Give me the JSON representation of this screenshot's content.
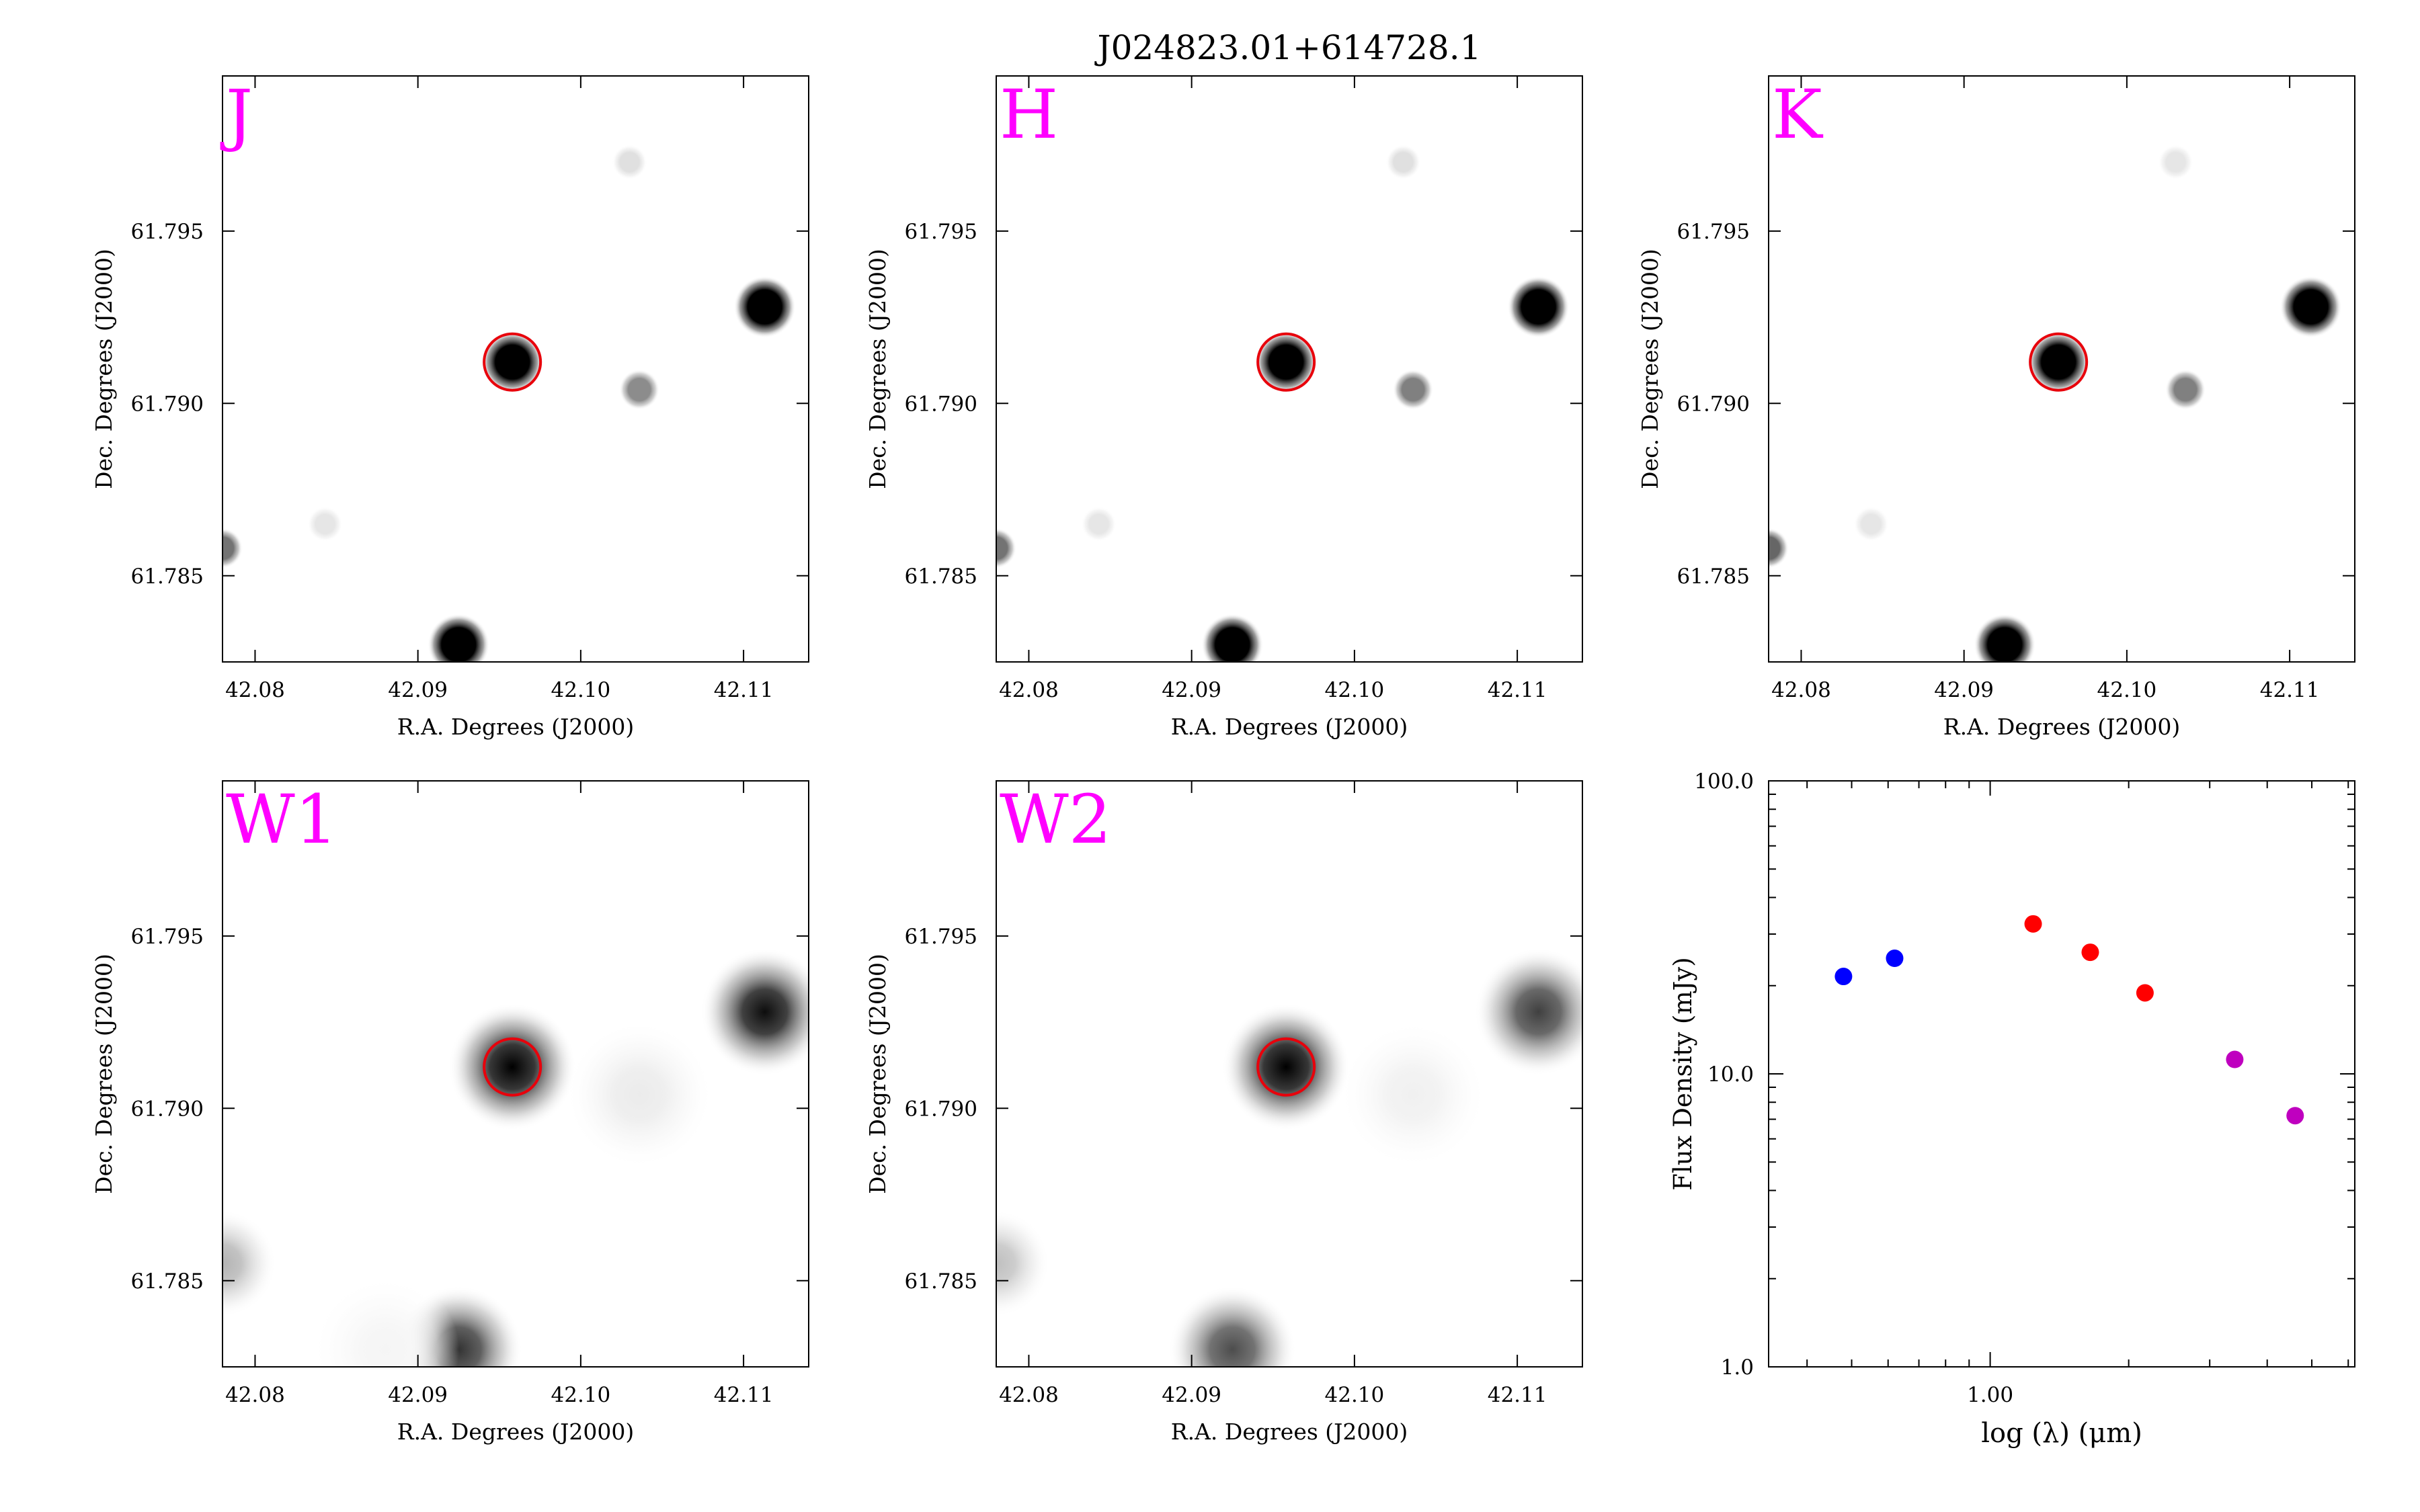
{
  "figure_title": "J024823.01+614728.1",
  "colors": {
    "band_label": "#ff00ff",
    "aperture": "#e8000b",
    "sed_blue": "#0000ff",
    "sed_red": "#ff0000",
    "sed_magenta": "#bf00bf"
  },
  "cutout_axes": {
    "xlabel": "R.A. Degrees (J2000)",
    "ylabel": "Dec. Degrees (J2000)",
    "xtick_labels": [
      "42.08",
      "42.09",
      "42.10",
      "42.11"
    ],
    "ytick_labels": [
      "61.795",
      "61.790",
      "61.785"
    ]
  },
  "chart_data": [
    {
      "type": "heatmap",
      "band": "J",
      "x_range": [
        42.078,
        42.114
      ],
      "y_range": [
        61.7825,
        61.7995
      ],
      "sources": [
        {
          "ra": 42.0958,
          "dec": 61.7912,
          "level": 1.0
        },
        {
          "ra": 42.1113,
          "dec": 61.7928,
          "level": 1.0
        },
        {
          "ra": 42.1036,
          "dec": 61.7904,
          "level": 0.45
        },
        {
          "ra": 42.0925,
          "dec": 61.783,
          "level": 1.0
        },
        {
          "ra": 42.078,
          "dec": 61.7858,
          "level": 0.55
        },
        {
          "ra": 42.103,
          "dec": 61.797,
          "level": 0.12
        },
        {
          "ra": 42.0843,
          "dec": 61.7865,
          "level": 0.1
        }
      ],
      "aperture": {
        "ra": 42.0958,
        "dec": 61.7912
      }
    },
    {
      "type": "heatmap",
      "band": "H",
      "x_range": [
        42.078,
        42.114
      ],
      "y_range": [
        61.7825,
        61.7995
      ],
      "sources": [
        {
          "ra": 42.0958,
          "dec": 61.7912,
          "level": 1.0
        },
        {
          "ra": 42.1113,
          "dec": 61.7928,
          "level": 1.0
        },
        {
          "ra": 42.1036,
          "dec": 61.7904,
          "level": 0.5
        },
        {
          "ra": 42.0925,
          "dec": 61.783,
          "level": 1.0
        },
        {
          "ra": 42.078,
          "dec": 61.7858,
          "level": 0.55
        },
        {
          "ra": 42.103,
          "dec": 61.797,
          "level": 0.12
        },
        {
          "ra": 42.0843,
          "dec": 61.7865,
          "level": 0.1
        }
      ],
      "aperture": {
        "ra": 42.0958,
        "dec": 61.7912
      }
    },
    {
      "type": "heatmap",
      "band": "K",
      "x_range": [
        42.078,
        42.114
      ],
      "y_range": [
        61.7825,
        61.7995
      ],
      "sources": [
        {
          "ra": 42.0958,
          "dec": 61.7912,
          "level": 1.0
        },
        {
          "ra": 42.1113,
          "dec": 61.7928,
          "level": 1.0
        },
        {
          "ra": 42.1036,
          "dec": 61.7904,
          "level": 0.5
        },
        {
          "ra": 42.0925,
          "dec": 61.783,
          "level": 1.0
        },
        {
          "ra": 42.078,
          "dec": 61.7858,
          "level": 0.6
        },
        {
          "ra": 42.103,
          "dec": 61.797,
          "level": 0.1
        },
        {
          "ra": 42.0843,
          "dec": 61.7865,
          "level": 0.1
        }
      ],
      "aperture": {
        "ra": 42.0958,
        "dec": 61.7912
      }
    },
    {
      "type": "heatmap",
      "band": "W1",
      "x_range": [
        42.078,
        42.114
      ],
      "y_range": [
        61.7825,
        61.7995
      ],
      "sources": [
        {
          "ra": 42.0958,
          "dec": 61.7912,
          "level": 1.0
        },
        {
          "ra": 42.1113,
          "dec": 61.7928,
          "level": 0.95
        },
        {
          "ra": 42.0925,
          "dec": 61.783,
          "level": 0.8
        },
        {
          "ra": 42.078,
          "dec": 61.7855,
          "level": 0.3
        },
        {
          "ra": 42.1036,
          "dec": 61.7904,
          "level": 0.08
        },
        {
          "ra": 42.088,
          "dec": 61.783,
          "level": 0.04
        }
      ],
      "aperture": {
        "ra": 42.0958,
        "dec": 61.7912
      }
    },
    {
      "type": "heatmap",
      "band": "W2",
      "x_range": [
        42.078,
        42.114
      ],
      "y_range": [
        61.7825,
        61.7995
      ],
      "sources": [
        {
          "ra": 42.0958,
          "dec": 61.7912,
          "level": 1.0
        },
        {
          "ra": 42.1113,
          "dec": 61.7928,
          "level": 0.75
        },
        {
          "ra": 42.0925,
          "dec": 61.783,
          "level": 0.7
        },
        {
          "ra": 42.078,
          "dec": 61.7855,
          "level": 0.25
        },
        {
          "ra": 42.1036,
          "dec": 61.7904,
          "level": 0.06
        }
      ],
      "aperture": {
        "ra": 42.0958,
        "dec": 61.7912
      }
    },
    {
      "type": "scatter",
      "xlabel": "log (λ) (μm)",
      "ylabel": "Flux Density (mJy)",
      "x_scale": "log",
      "y_scale": "log",
      "xlim": [
        0.33,
        6.2
      ],
      "ylim": [
        1.0,
        100.0
      ],
      "x_tick_labels": [
        "1.00"
      ],
      "y_tick_labels": [
        "1.0",
        "10.0",
        "100.0"
      ],
      "points": [
        {
          "x": 0.48,
          "y": 21.5,
          "color": "sed_blue"
        },
        {
          "x": 0.62,
          "y": 24.8,
          "color": "sed_blue"
        },
        {
          "x": 1.24,
          "y": 32.5,
          "color": "sed_red"
        },
        {
          "x": 1.65,
          "y": 26.0,
          "color": "sed_red"
        },
        {
          "x": 2.17,
          "y": 18.9,
          "color": "sed_red"
        },
        {
          "x": 3.4,
          "y": 11.2,
          "color": "sed_magenta"
        },
        {
          "x": 4.6,
          "y": 7.2,
          "color": "sed_magenta"
        }
      ]
    }
  ]
}
